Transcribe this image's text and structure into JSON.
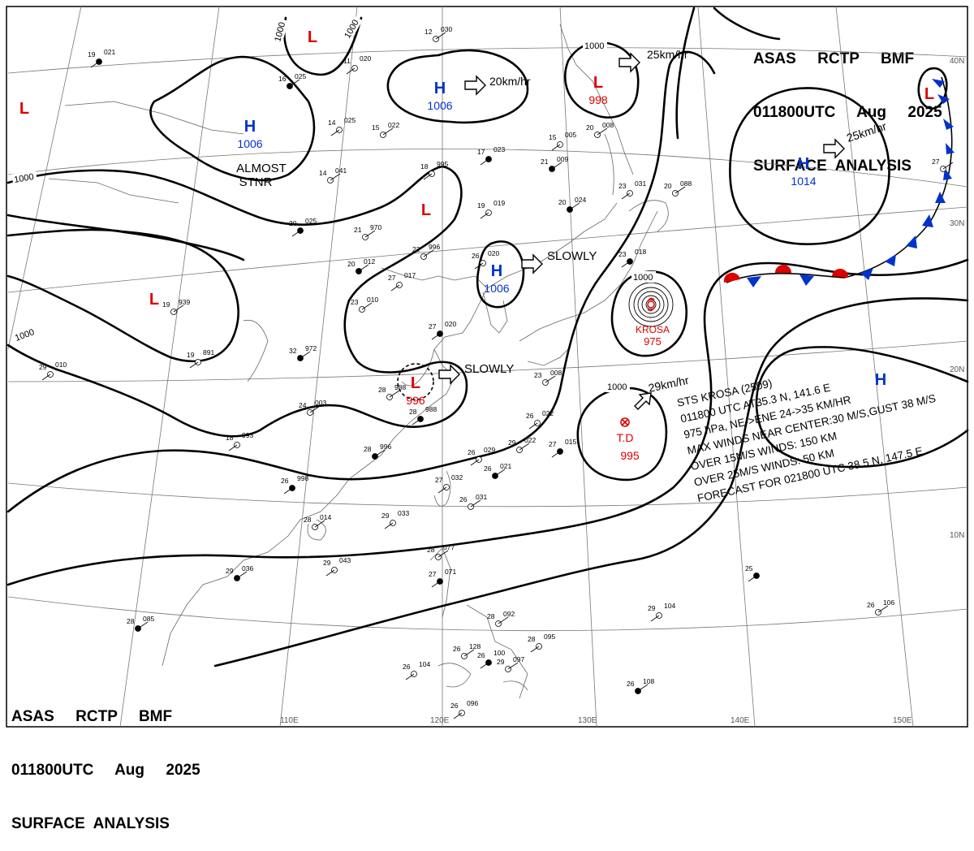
{
  "header": {
    "line1": "ASAS     RCTP     BMF",
    "line2": "011800UTC     Aug     2025",
    "line3": "SURFACE  ANALYSIS"
  },
  "grid": {
    "lon_labels": [
      "110E",
      "120E",
      "130E",
      "140E",
      "150E"
    ],
    "lat_labels": [
      "40N",
      "30N",
      "20N",
      "10N"
    ]
  },
  "isobar_labels": [
    "1000",
    "1000",
    "1000",
    "1000",
    "1000",
    "1000",
    "1000"
  ],
  "pressure_centers": [
    {
      "type": "L",
      "value": ""
    },
    {
      "type": "L",
      "value": ""
    },
    {
      "type": "H",
      "value": "1006"
    },
    {
      "type": "L",
      "value": "998"
    },
    {
      "type": "H",
      "value": "1006"
    },
    {
      "type": "L",
      "value": ""
    },
    {
      "type": "H",
      "value": "1006"
    },
    {
      "type": "L",
      "value": ""
    },
    {
      "type": "L",
      "value": "996"
    },
    {
      "type": "H",
      "value": "1014"
    },
    {
      "type": "L",
      "value": ""
    },
    {
      "type": "H",
      "value": ""
    }
  ],
  "notes": {
    "almost_stnr": "ALMOST\nSTNR",
    "slowly_1": "SLOWLY",
    "slowly_2": "SLOWLY",
    "speed_20": "20km/hr",
    "speed_25a": "25km/hr",
    "speed_25b": "25km/hr",
    "speed_29": "29km/hr"
  },
  "storm": {
    "name": "KROSA",
    "pressure": "975"
  },
  "td": {
    "label": "T.D",
    "pressure": "995"
  },
  "typhoon_info": [
    "STS  KROSA (2509)",
    "011800 UTC  AT35.3 N, 141.6 E",
    "975 hPa, NE->ENE  24->35 KM/HR",
    "MAX WINDS NEAR CENTER:30 M/S,GUST 38 M/S",
    "OVER 15M/S WINDS: 150 KM",
    "OVER 25M/S WINDS: 50 KM",
    "FORECAST FOR 021800 UTC 38.5 N, 147.5 E"
  ],
  "stations": [
    {
      "t": "19",
      "p": "021"
    },
    {
      "t": "12",
      "p": "030"
    },
    {
      "t": "11",
      "p": "020"
    },
    {
      "t": "16",
      "p": "025"
    },
    {
      "t": "14",
      "p": "025"
    },
    {
      "t": "15",
      "p": "022"
    },
    {
      "t": "17",
      "p": "023"
    },
    {
      "t": "14",
      "p": "041"
    },
    {
      "t": "18",
      "p": "995"
    },
    {
      "t": "21",
      "p": "009"
    },
    {
      "t": "15",
      "p": "005"
    },
    {
      "t": "20",
      "p": "008"
    },
    {
      "t": "20",
      "p": "025"
    },
    {
      "t": "21",
      "p": "970"
    },
    {
      "t": "19",
      "p": "019"
    },
    {
      "t": "20",
      "p": "024"
    },
    {
      "t": "23",
      "p": "031"
    },
    {
      "t": "20",
      "p": "088"
    },
    {
      "t": "23",
      "p": "018"
    },
    {
      "t": "22",
      "p": "996"
    },
    {
      "t": "26",
      "p": "020"
    },
    {
      "t": "20",
      "p": "012"
    },
    {
      "t": "27",
      "p": "017"
    },
    {
      "t": "23",
      "p": "010"
    },
    {
      "t": "27",
      "p": "020"
    },
    {
      "t": "19",
      "p": "939"
    },
    {
      "t": "19",
      "p": "891"
    },
    {
      "t": "32",
      "p": "972"
    },
    {
      "t": "29",
      "p": "010"
    },
    {
      "t": "28",
      "p": "988"
    },
    {
      "t": "28",
      "p": "988"
    },
    {
      "t": "24",
      "p": "003"
    },
    {
      "t": "18",
      "p": "993"
    },
    {
      "t": "28",
      "p": "996"
    },
    {
      "t": "26",
      "p": "022"
    },
    {
      "t": "29",
      "p": "022"
    },
    {
      "t": "27",
      "p": "015"
    },
    {
      "t": "23",
      "p": "008"
    },
    {
      "t": "26",
      "p": "029"
    },
    {
      "t": "26",
      "p": "021"
    },
    {
      "t": "27",
      "p": "032"
    },
    {
      "t": "26",
      "p": "031"
    },
    {
      "t": "26",
      "p": "998"
    },
    {
      "t": "28",
      "p": "014"
    },
    {
      "t": "29",
      "p": "033"
    },
    {
      "t": "29",
      "p": "036"
    },
    {
      "t": "29",
      "p": "043"
    },
    {
      "t": "28",
      "p": "077"
    },
    {
      "t": "27",
      "p": "071"
    },
    {
      "t": "28",
      "p": "092"
    },
    {
      "t": "28",
      "p": "095"
    },
    {
      "t": "28",
      "p": "085"
    },
    {
      "t": "26",
      "p": "104"
    },
    {
      "t": "26",
      "p": "128"
    },
    {
      "t": "26",
      "p": "100"
    },
    {
      "t": "29",
      "p": "097"
    },
    {
      "t": "26",
      "p": "096"
    },
    {
      "t": "26",
      "p": "108"
    },
    {
      "t": "29",
      "p": "104"
    },
    {
      "t": "26",
      "p": "106"
    },
    {
      "t": "25",
      "p": ""
    },
    {
      "t": "27",
      "p": ""
    }
  ]
}
